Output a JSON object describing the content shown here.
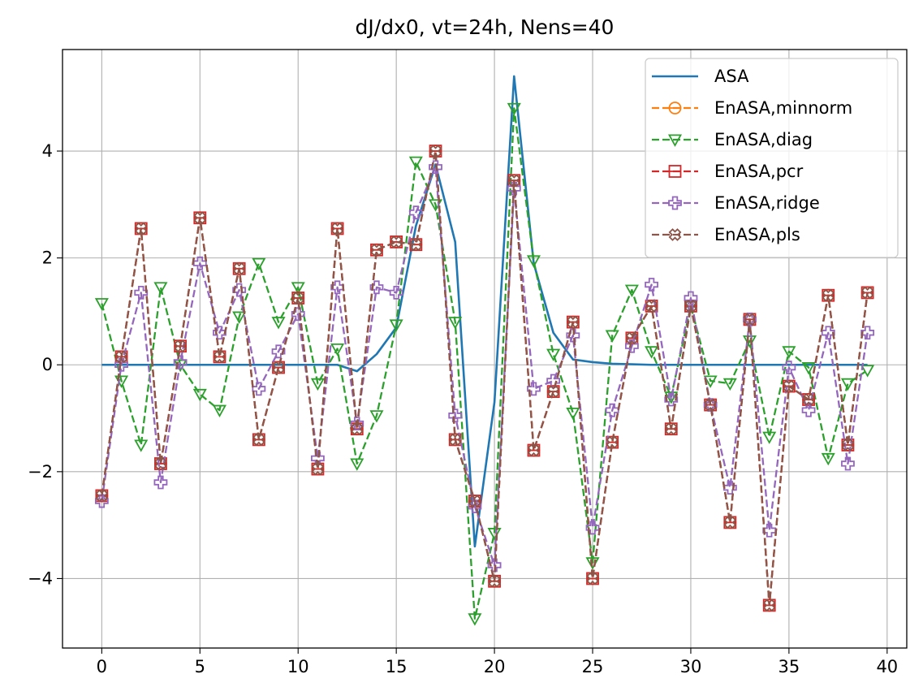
{
  "chart_data": {
    "type": "line",
    "title": "dJ/dx0, vt=24h, Nens=40",
    "xlabel": "",
    "ylabel": "",
    "xlim": [
      -2,
      41
    ],
    "ylim": [
      -5.3,
      5.9
    ],
    "xticks": [
      0,
      5,
      10,
      15,
      20,
      25,
      30,
      35,
      40
    ],
    "yticks": [
      -4,
      -2,
      0,
      2,
      4
    ],
    "grid": true,
    "legend_position": "top-right",
    "x": [
      0,
      1,
      2,
      3,
      4,
      5,
      6,
      7,
      8,
      9,
      10,
      11,
      12,
      13,
      14,
      15,
      16,
      17,
      18,
      19,
      20,
      21,
      22,
      23,
      24,
      25,
      26,
      27,
      28,
      29,
      30,
      31,
      32,
      33,
      34,
      35,
      36,
      37,
      38,
      39
    ],
    "series": [
      {
        "name": "ASA",
        "color": "#1f77b4",
        "linestyle": "solid",
        "marker": "none",
        "values": [
          0,
          0,
          0,
          0,
          0,
          0,
          0,
          0,
          0,
          0,
          0,
          0,
          0,
          -0.12,
          0.2,
          0.7,
          2.6,
          3.75,
          2.3,
          -3.4,
          -0.7,
          5.4,
          1.9,
          0.6,
          0.1,
          0.05,
          0.02,
          0.01,
          0,
          0,
          0,
          0,
          0,
          0,
          0,
          0,
          0,
          0,
          0,
          0
        ]
      },
      {
        "name": "EnASA,minnorm",
        "color": "#ff7f0e",
        "linestyle": "dashed",
        "marker": "circle-minus",
        "values": [
          -2.45,
          0.15,
          2.55,
          -1.85,
          0.35,
          2.75,
          0.15,
          1.8,
          -1.4,
          -0.05,
          1.25,
          -1.95,
          2.55,
          -1.2,
          2.15,
          2.3,
          2.25,
          4.0,
          -1.4,
          -2.55,
          -4.05,
          3.45,
          -1.6,
          -0.5,
          0.8,
          -4.0,
          -1.45,
          0.5,
          1.1,
          -1.2,
          1.1,
          -0.75,
          -2.95,
          0.85,
          -4.5,
          -0.4,
          -0.65,
          1.3,
          -1.5,
          1.35
        ]
      },
      {
        "name": "EnASA,diag",
        "color": "#2ca02c",
        "linestyle": "dashed",
        "marker": "triangle-down",
        "values": [
          1.15,
          -0.3,
          -1.5,
          1.45,
          0.0,
          -0.55,
          -0.85,
          0.9,
          1.9,
          0.8,
          1.45,
          -0.35,
          0.3,
          -1.85,
          -0.95,
          0.75,
          3.8,
          3.0,
          0.8,
          -4.75,
          -3.15,
          4.8,
          1.95,
          0.2,
          -0.9,
          -3.7,
          0.55,
          1.4,
          0.25,
          -0.6,
          1.1,
          -0.3,
          -0.35,
          0.45,
          -1.35,
          0.25,
          -0.05,
          -1.75,
          -0.35,
          -0.1
        ]
      },
      {
        "name": "EnASA,pcr",
        "color": "#d62728",
        "linestyle": "dashed",
        "marker": "square-minus",
        "values": [
          -2.45,
          0.15,
          2.55,
          -1.85,
          0.35,
          2.75,
          0.15,
          1.8,
          -1.4,
          -0.05,
          1.25,
          -1.95,
          2.55,
          -1.2,
          2.15,
          2.3,
          2.25,
          4.0,
          -1.4,
          -2.55,
          -4.05,
          3.45,
          -1.6,
          -0.5,
          0.8,
          -4.0,
          -1.45,
          0.5,
          1.1,
          -1.2,
          1.1,
          -0.75,
          -2.95,
          0.85,
          -4.5,
          -0.4,
          -0.65,
          1.3,
          -1.5,
          1.35
        ]
      },
      {
        "name": "EnASA,ridge",
        "color": "#9467bd",
        "linestyle": "dashed",
        "marker": "plus-filled",
        "values": [
          -2.55,
          0.0,
          1.35,
          -2.2,
          0.05,
          1.9,
          0.6,
          1.4,
          -0.45,
          0.25,
          0.95,
          -1.75,
          1.45,
          -1.1,
          1.45,
          1.35,
          2.85,
          3.7,
          -0.95,
          -2.65,
          -3.75,
          3.3,
          -0.45,
          -0.3,
          0.55,
          -3.05,
          -0.85,
          0.35,
          1.5,
          -0.65,
          1.25,
          -0.75,
          -2.3,
          0.85,
          -3.1,
          -0.05,
          -0.85,
          0.6,
          -1.85,
          0.6
        ]
      },
      {
        "name": "EnASA,pls",
        "color": "#8c564b",
        "linestyle": "dashed",
        "marker": "x-filled",
        "values": [
          -2.45,
          0.15,
          2.55,
          -1.85,
          0.35,
          2.75,
          0.15,
          1.8,
          -1.4,
          -0.05,
          1.25,
          -1.95,
          2.55,
          -1.2,
          2.15,
          2.3,
          2.25,
          4.0,
          -1.4,
          -2.55,
          -4.05,
          3.45,
          -1.6,
          -0.5,
          0.8,
          -4.0,
          -1.45,
          0.5,
          1.1,
          -1.2,
          1.1,
          -0.75,
          -2.95,
          0.85,
          -4.5,
          -0.4,
          -0.65,
          1.3,
          -1.5,
          1.35
        ]
      }
    ]
  }
}
